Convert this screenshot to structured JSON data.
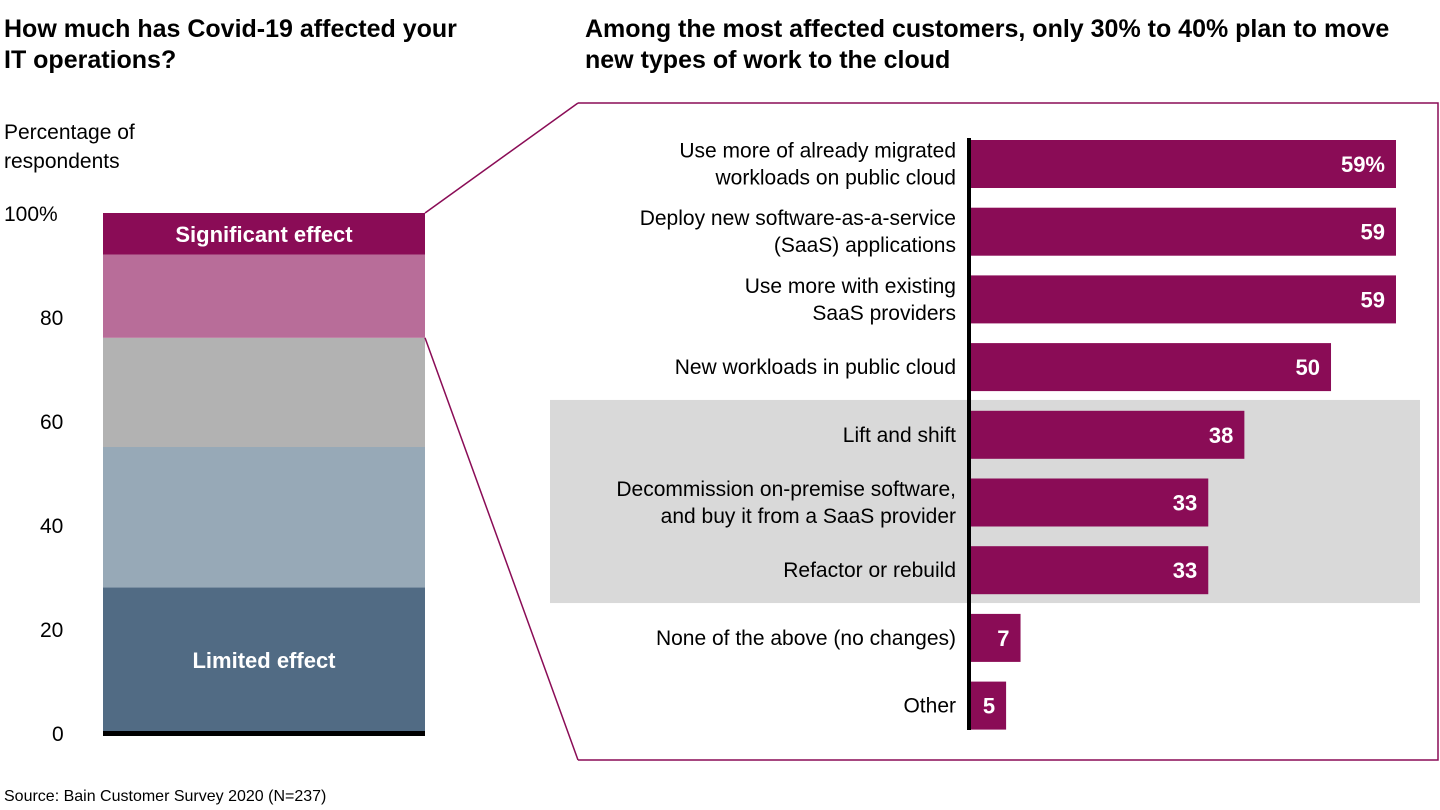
{
  "chart_data": [
    {
      "type": "bar",
      "stacked": true,
      "title": "How much has Covid-19 affected your IT operations?",
      "ylabel": "Percentage of respondents",
      "ylim": [
        0,
        100
      ],
      "yticks": [
        "0",
        "20",
        "40",
        "60",
        "80",
        "100%"
      ],
      "segments": [
        {
          "label": "Limited effect",
          "value": 28,
          "color": "#516b84"
        },
        {
          "label": "",
          "value": 27,
          "color": "#97a9b7"
        },
        {
          "label": "",
          "value": 21,
          "color": "#b2b2b2"
        },
        {
          "label": "",
          "value": 16,
          "color": "#b86d99"
        },
        {
          "label": "Significant effect",
          "value": 8,
          "color": "#8a0c56"
        }
      ]
    },
    {
      "type": "bar",
      "orientation": "horizontal",
      "title": "Among the most affected customers, only 30% to 40% plan to move new types of work to the cloud",
      "xlim": [
        0,
        60
      ],
      "color": "#8a0c56",
      "highlight_color": "#d9d9d9",
      "highlighted_categories": [
        4,
        5,
        6
      ],
      "categories": [
        [
          "Use more of already migrated",
          "workloads on public cloud"
        ],
        [
          "Deploy new software-as-a-service",
          "(SaaS) applications"
        ],
        [
          "Use more with existing",
          "SaaS providers"
        ],
        [
          "New workloads in public cloud"
        ],
        [
          "Lift and shift"
        ],
        [
          "Decommission on-premise software,",
          "and buy it from a SaaS provider"
        ],
        [
          "Refactor or rebuild"
        ],
        [
          "None of the above (no changes)"
        ],
        [
          "Other"
        ]
      ],
      "values": [
        59,
        59,
        59,
        50,
        38,
        33,
        33,
        7,
        5
      ],
      "data_labels": [
        "59%",
        "59",
        "59",
        "50",
        "38",
        "33",
        "33",
        "7",
        "5"
      ]
    }
  ],
  "source": "Source: Bain Customer Survey 2020 (N=237)"
}
